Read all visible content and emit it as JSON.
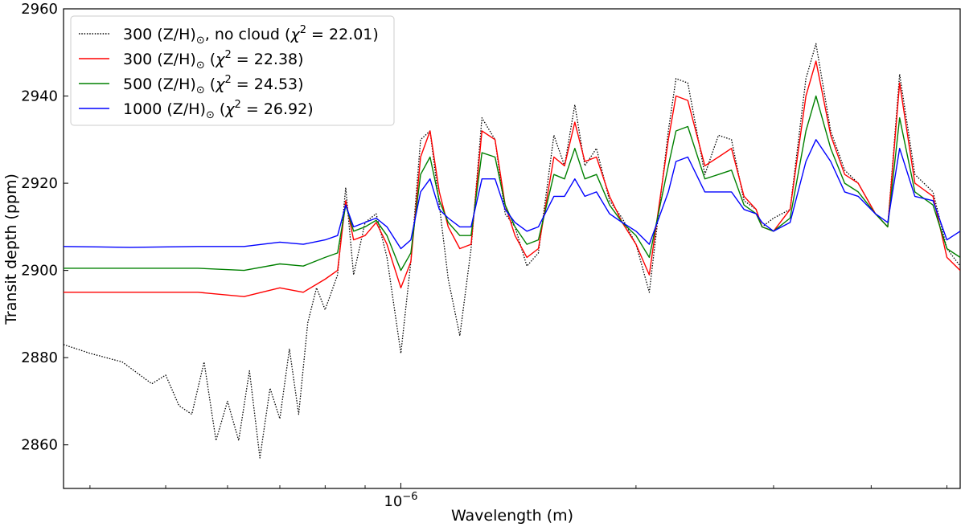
{
  "chart_data": {
    "type": "line",
    "xlabel": "Wavelength (m)",
    "ylabel": "Transit depth (ppm)",
    "xscale": "log",
    "xlim": [
      3.7e-07,
      5.2e-06
    ],
    "ylim": [
      2850,
      2960
    ],
    "x_ticks": [
      {
        "value": 1e-06,
        "label": "10^-6"
      }
    ],
    "y_ticks": [
      2860,
      2880,
      2900,
      2920,
      2940,
      2960
    ],
    "legend_position": "top-left",
    "grid": false,
    "series": [
      {
        "name": "300 (Z/H)⊙, no cloud (χ² = 22.01)",
        "label_parts": {
          "pre": "300 (Z/H)",
          "sub": "⊙",
          "mid": ", no cloud (",
          "chi": "χ",
          "sup": "2",
          "post": " = 22.01)"
        },
        "color": "#000000",
        "style": "dotted",
        "x": [
          3.7e-07,
          4e-07,
          4.4e-07,
          4.8e-07,
          5e-07,
          5.2e-07,
          5.4e-07,
          5.6e-07,
          5.8e-07,
          6e-07,
          6.2e-07,
          6.4e-07,
          6.6e-07,
          6.8e-07,
          7e-07,
          7.2e-07,
          7.4e-07,
          7.6e-07,
          7.8e-07,
          8e-07,
          8.3e-07,
          8.5e-07,
          8.7e-07,
          9e-07,
          9.3e-07,
          9.6e-07,
          1e-06,
          1.03e-06,
          1.06e-06,
          1.09e-06,
          1.12e-06,
          1.15e-06,
          1.19e-06,
          1.23e-06,
          1.27e-06,
          1.32e-06,
          1.36e-06,
          1.4e-06,
          1.45e-06,
          1.5e-06,
          1.57e-06,
          1.62e-06,
          1.67e-06,
          1.72e-06,
          1.78e-06,
          1.85e-06,
          1.92e-06,
          2e-06,
          2.08e-06,
          2.2e-06,
          2.25e-06,
          2.33e-06,
          2.45e-06,
          2.55e-06,
          2.65e-06,
          2.75e-06,
          2.85e-06,
          2.9e-06,
          3e-06,
          3.15e-06,
          3.3e-06,
          3.4e-06,
          3.55e-06,
          3.7e-06,
          3.85e-06,
          4.05e-06,
          4.2e-06,
          4.35e-06,
          4.55e-06,
          4.8e-06,
          5e-06,
          5.2e-06
        ],
        "y": [
          2883,
          2881,
          2879,
          2874,
          2876,
          2869,
          2867,
          2879,
          2861,
          2870,
          2861,
          2877,
          2857,
          2873,
          2866,
          2882,
          2867,
          2888,
          2896,
          2891,
          2899,
          2919,
          2899,
          2911,
          2913,
          2903,
          2881,
          2902,
          2930,
          2932,
          2915,
          2898,
          2885,
          2905,
          2935,
          2930,
          2913,
          2910,
          2901,
          2904,
          2931,
          2924,
          2938,
          2924,
          2928,
          2916,
          2912,
          2906,
          2895,
          2932,
          2944,
          2943,
          2922,
          2931,
          2930,
          2916,
          2914,
          2910,
          2912,
          2914,
          2944,
          2952,
          2932,
          2923,
          2920,
          2913,
          2910,
          2945,
          2922,
          2918,
          2905,
          2901
        ]
      },
      {
        "name": "300 (Z/H)⊙ (χ² = 22.38)",
        "label_parts": {
          "pre": "300 (Z/H)",
          "sub": "⊙",
          "mid": " (",
          "chi": "χ",
          "sup": "2",
          "post": " = 22.38)"
        },
        "color": "#ff0000",
        "style": "solid",
        "x": [
          3.7e-07,
          4.5e-07,
          5.5e-07,
          6.3e-07,
          7e-07,
          7.5e-07,
          8e-07,
          8.3e-07,
          8.5e-07,
          8.7e-07,
          9e-07,
          9.3e-07,
          9.6e-07,
          1e-06,
          1.03e-06,
          1.06e-06,
          1.09e-06,
          1.12e-06,
          1.15e-06,
          1.19e-06,
          1.23e-06,
          1.27e-06,
          1.32e-06,
          1.36e-06,
          1.4e-06,
          1.45e-06,
          1.5e-06,
          1.57e-06,
          1.62e-06,
          1.67e-06,
          1.72e-06,
          1.78e-06,
          1.85e-06,
          1.92e-06,
          2e-06,
          2.08e-06,
          2.2e-06,
          2.25e-06,
          2.33e-06,
          2.45e-06,
          2.55e-06,
          2.65e-06,
          2.75e-06,
          2.85e-06,
          2.9e-06,
          3e-06,
          3.15e-06,
          3.3e-06,
          3.4e-06,
          3.55e-06,
          3.7e-06,
          3.85e-06,
          4.05e-06,
          4.2e-06,
          4.35e-06,
          4.55e-06,
          4.8e-06,
          5e-06,
          5.2e-06
        ],
        "y": [
          2895,
          2895,
          2895,
          2894,
          2896,
          2895,
          2898,
          2900,
          2916,
          2907,
          2908,
          2911,
          2906,
          2896,
          2902,
          2926,
          2932,
          2918,
          2910,
          2905,
          2906,
          2932,
          2930,
          2915,
          2908,
          2903,
          2905,
          2926,
          2924,
          2934,
          2925,
          2926,
          2917,
          2911,
          2906,
          2899,
          2930,
          2940,
          2939,
          2924,
          2926,
          2928,
          2917,
          2914,
          2910,
          2909,
          2914,
          2940,
          2948,
          2931,
          2922,
          2920,
          2913,
          2910,
          2943,
          2920,
          2917,
          2903,
          2900
        ]
      },
      {
        "name": "500 (Z/H)⊙ (χ² = 24.53)",
        "label_parts": {
          "pre": "500 (Z/H)",
          "sub": "⊙",
          "mid": " (",
          "chi": "χ",
          "sup": "2",
          "post": " = 24.53)"
        },
        "color": "#008000",
        "style": "solid",
        "x": [
          3.7e-07,
          4.5e-07,
          5.5e-07,
          6.3e-07,
          7e-07,
          7.5e-07,
          8e-07,
          8.3e-07,
          8.5e-07,
          8.7e-07,
          9e-07,
          9.3e-07,
          9.6e-07,
          1e-06,
          1.03e-06,
          1.06e-06,
          1.09e-06,
          1.12e-06,
          1.15e-06,
          1.19e-06,
          1.23e-06,
          1.27e-06,
          1.32e-06,
          1.36e-06,
          1.4e-06,
          1.45e-06,
          1.5e-06,
          1.57e-06,
          1.62e-06,
          1.67e-06,
          1.72e-06,
          1.78e-06,
          1.85e-06,
          1.92e-06,
          2e-06,
          2.08e-06,
          2.2e-06,
          2.25e-06,
          2.33e-06,
          2.45e-06,
          2.55e-06,
          2.65e-06,
          2.75e-06,
          2.85e-06,
          2.9e-06,
          3e-06,
          3.15e-06,
          3.3e-06,
          3.4e-06,
          3.55e-06,
          3.7e-06,
          3.85e-06,
          4.05e-06,
          4.2e-06,
          4.35e-06,
          4.55e-06,
          4.8e-06,
          5e-06,
          5.2e-06
        ],
        "y": [
          2900.5,
          2900.5,
          2900.5,
          2900,
          2901.5,
          2901,
          2903,
          2904,
          2915,
          2909,
          2910,
          2911.5,
          2908,
          2900,
          2904,
          2922,
          2926,
          2916,
          2911,
          2908,
          2908,
          2927,
          2926,
          2915,
          2910,
          2906,
          2907,
          2922,
          2921,
          2928,
          2921,
          2922,
          2915,
          2911,
          2908,
          2903,
          2924,
          2932,
          2933,
          2921,
          2922,
          2923,
          2915,
          2913,
          2910,
          2909,
          2912,
          2932,
          2940,
          2928,
          2920,
          2918,
          2913,
          2910,
          2935,
          2918,
          2915,
          2905,
          2903
        ]
      },
      {
        "name": "1000 (Z/H)⊙ (χ² = 26.92)",
        "label_parts": {
          "pre": "1000 (Z/H)",
          "sub": "⊙",
          "mid": " (",
          "chi": "χ",
          "sup": "2",
          "post": " = 26.92)"
        },
        "color": "#0000ff",
        "style": "solid",
        "x": [
          3.7e-07,
          4.5e-07,
          5.5e-07,
          6.3e-07,
          7e-07,
          7.5e-07,
          8e-07,
          8.3e-07,
          8.5e-07,
          8.7e-07,
          9e-07,
          9.3e-07,
          9.6e-07,
          1e-06,
          1.03e-06,
          1.06e-06,
          1.09e-06,
          1.12e-06,
          1.15e-06,
          1.19e-06,
          1.23e-06,
          1.27e-06,
          1.32e-06,
          1.36e-06,
          1.4e-06,
          1.45e-06,
          1.5e-06,
          1.57e-06,
          1.62e-06,
          1.67e-06,
          1.72e-06,
          1.78e-06,
          1.85e-06,
          1.92e-06,
          2e-06,
          2.08e-06,
          2.2e-06,
          2.25e-06,
          2.33e-06,
          2.45e-06,
          2.55e-06,
          2.65e-06,
          2.75e-06,
          2.85e-06,
          2.9e-06,
          3e-06,
          3.15e-06,
          3.3e-06,
          3.4e-06,
          3.55e-06,
          3.7e-06,
          3.85e-06,
          4.05e-06,
          4.2e-06,
          4.35e-06,
          4.55e-06,
          4.8e-06,
          5e-06,
          5.2e-06
        ],
        "y": [
          2905.5,
          2905.3,
          2905.5,
          2905.5,
          2906.5,
          2906,
          2907,
          2908,
          2915,
          2910,
          2911,
          2912,
          2910,
          2905,
          2907,
          2918,
          2921,
          2914,
          2912,
          2910,
          2910,
          2921,
          2921,
          2914,
          2911,
          2909,
          2910,
          2917,
          2917,
          2921,
          2917,
          2918,
          2913,
          2911,
          2909,
          2906,
          2918,
          2925,
          2926,
          2918,
          2918,
          2918,
          2914,
          2913,
          2911,
          2909,
          2911,
          2925,
          2930,
          2925,
          2918,
          2917,
          2913,
          2911,
          2928,
          2917,
          2916,
          2907,
          2909
        ]
      }
    ]
  }
}
